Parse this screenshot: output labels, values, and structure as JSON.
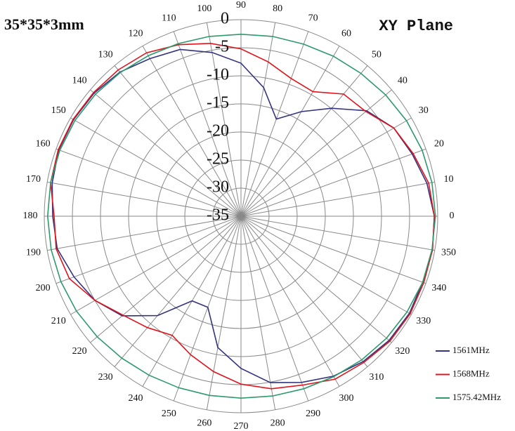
{
  "chart_data": {
    "type": "polar",
    "title": "XY Plane",
    "annotation": "35*35*3mm",
    "theta": [
      0,
      10,
      20,
      30,
      40,
      50,
      60,
      70,
      80,
      90,
      100,
      110,
      120,
      130,
      140,
      150,
      160,
      170,
      180,
      190,
      200,
      210,
      220,
      230,
      240,
      250,
      260,
      270,
      280,
      290,
      300,
      310,
      320,
      330,
      340,
      350
    ],
    "thetaticks": [
      0,
      10,
      20,
      30,
      40,
      50,
      60,
      70,
      80,
      90,
      100,
      110,
      120,
      130,
      140,
      150,
      160,
      170,
      180,
      190,
      200,
      210,
      220,
      230,
      240,
      250,
      260,
      270,
      280,
      290,
      300,
      310,
      320,
      330,
      340,
      350
    ],
    "rlim": [
      -35,
      0
    ],
    "rticks": [
      0,
      -5,
      -10,
      -15,
      -20,
      -25,
      -30,
      -35
    ],
    "grid": true,
    "legend": "lower right",
    "series": [
      {
        "name": "1561MHz",
        "color": "#333380",
        "values": [
          -0.6,
          -1.4,
          -2.6,
          -3.6,
          -5.8,
          -9.9,
          -13.5,
          -16.6,
          -11.75,
          -7.75,
          -5.4,
          -3.4,
          -2.6,
          -1.5,
          -0.9,
          -0.6,
          -0.5,
          -0.9,
          -1.5,
          -1.8,
          -3.4,
          -5,
          -7.4,
          -11.9,
          -17.6,
          -17.75,
          -11.25,
          -7.9,
          -4.9,
          -3.5,
          -2.1,
          -1.2,
          -0.6,
          -0.4,
          -0.6,
          -0.4
        ]
      },
      {
        "name": "1568MHz",
        "color": "#e0141c",
        "values": [
          -0.6,
          -1.1,
          -2.4,
          -3.6,
          -6,
          -6.6,
          -9.4,
          -8.9,
          -7.1,
          -5.2,
          -3.75,
          -2.5,
          -1.4,
          -1,
          -0.75,
          -0.5,
          -0.4,
          -0.6,
          -1.75,
          -1.6,
          -2.5,
          -5,
          -7.6,
          -9.1,
          -10.5,
          -8.75,
          -6.9,
          -5.1,
          -3.8,
          -3,
          -1.5,
          -1,
          -0.4,
          -0.25,
          -0.4,
          -0.4
        ]
      },
      {
        "name": "1575.42MHz",
        "color": "#2e9a6e",
        "values": [
          -0.4,
          -0.5,
          -0.7,
          -1,
          -1.4,
          -1.8,
          -2.1,
          -2.4,
          -2.5,
          -2.6,
          -2.5,
          -2.3,
          -2,
          -1.6,
          -1.2,
          -0.9,
          -0.7,
          -0.6,
          -0.6,
          -0.7,
          -0.9,
          -1.2,
          -1.6,
          -2,
          -2.3,
          -2.5,
          -2.6,
          -2.6,
          -2.5,
          -2.3,
          -2,
          -1.6,
          -1.2,
          -0.9,
          -0.6,
          -0.5
        ]
      }
    ]
  }
}
